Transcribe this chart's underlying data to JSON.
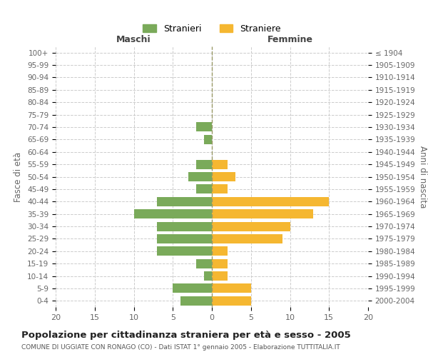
{
  "age_groups": [
    "0-4",
    "5-9",
    "10-14",
    "15-19",
    "20-24",
    "25-29",
    "30-34",
    "35-39",
    "40-44",
    "45-49",
    "50-54",
    "55-59",
    "60-64",
    "65-69",
    "70-74",
    "75-79",
    "80-84",
    "85-89",
    "90-94",
    "95-99",
    "100+"
  ],
  "birth_years": [
    "2000-2004",
    "1995-1999",
    "1990-1994",
    "1985-1989",
    "1980-1984",
    "1975-1979",
    "1970-1974",
    "1965-1969",
    "1960-1964",
    "1955-1959",
    "1950-1954",
    "1945-1949",
    "1940-1944",
    "1935-1939",
    "1930-1934",
    "1925-1929",
    "1920-1924",
    "1915-1919",
    "1910-1914",
    "1905-1909",
    "≤ 1904"
  ],
  "maschi": [
    4,
    5,
    1,
    2,
    7,
    7,
    7,
    10,
    7,
    2,
    3,
    2,
    0,
    1,
    2,
    0,
    0,
    0,
    0,
    0,
    0
  ],
  "femmine": [
    5,
    5,
    2,
    2,
    2,
    9,
    10,
    13,
    15,
    2,
    3,
    2,
    0,
    0,
    0,
    0,
    0,
    0,
    0,
    0,
    0
  ],
  "maschi_color": "#7aaa5a",
  "femmine_color": "#f5b731",
  "title": "Popolazione per cittadinanza straniera per età e sesso - 2005",
  "subtitle": "COMUNE DI UGGIATE CON RONAGO (CO) - Dati ISTAT 1° gennaio 2005 - Elaborazione TUTTITALIA.IT",
  "xlabel_left": "Maschi",
  "xlabel_right": "Femmine",
  "ylabel_left": "Fasce di età",
  "ylabel_right": "Anni di nascita",
  "legend_maschi": "Stranieri",
  "legend_femmine": "Straniere",
  "xlim": 20,
  "background_color": "#ffffff",
  "grid_color": "#cccccc",
  "bar_height": 0.75,
  "center_line_color": "#999966"
}
